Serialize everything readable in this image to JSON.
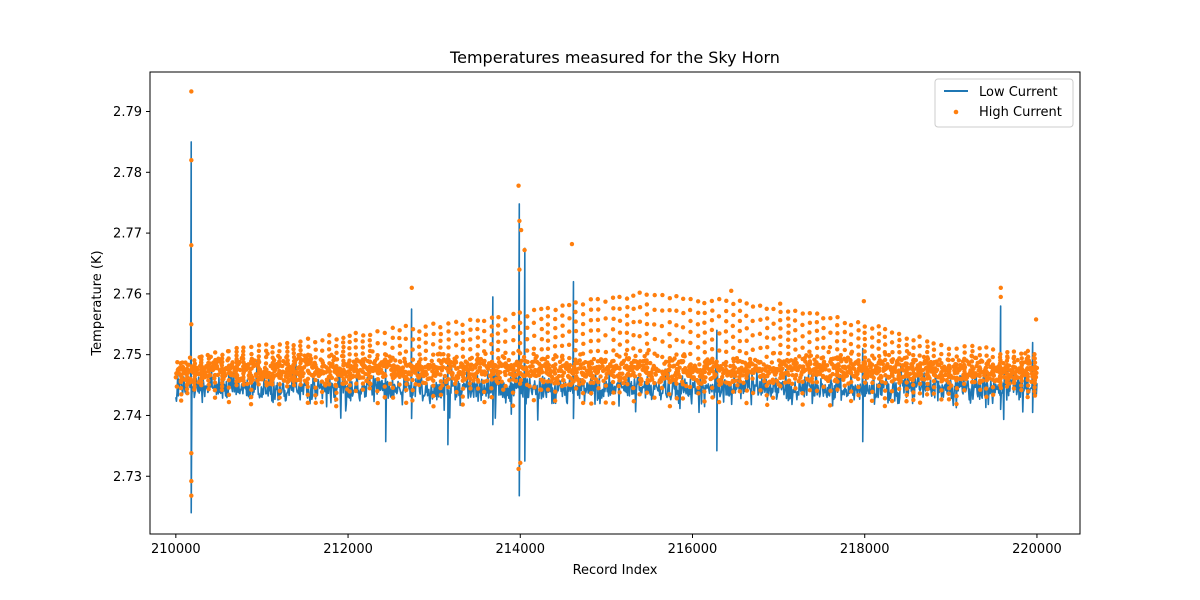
{
  "chart_data": {
    "type": "line",
    "title": "Temperatures measured for the Sky Horn",
    "xlabel": "Record Index",
    "ylabel": "Temperature (K)",
    "xlim": [
      209700,
      220500
    ],
    "ylim": [
      2.7205,
      2.7965
    ],
    "xticks": [
      210000,
      212000,
      214000,
      216000,
      218000,
      220000
    ],
    "yticks": [
      2.73,
      2.74,
      2.75,
      2.76,
      2.77,
      2.78,
      2.79
    ],
    "x_range": [
      210000,
      220000
    ],
    "legend_position": "top-right",
    "series": [
      {
        "name": "Low Current",
        "kind": "line",
        "color": "#1f77b4",
        "baseline": 2.7445,
        "noise_band": [
          2.7405,
          2.7475
        ],
        "spikes": [
          {
            "x": 210180,
            "top": 2.785,
            "bottom": 2.724
          },
          {
            "x": 213990,
            "top": 2.7748,
            "bottom": 2.7268
          },
          {
            "x": 214050,
            "top": 2.7675,
            "bottom": 2.7325
          },
          {
            "x": 212740,
            "top": 2.7575,
            "bottom": 2.7395
          },
          {
            "x": 213680,
            "top": 2.7595,
            "bottom": 2.7385
          },
          {
            "x": 214620,
            "top": 2.762,
            "bottom": 2.7395
          },
          {
            "x": 219580,
            "top": 2.758,
            "bottom": 2.741
          },
          {
            "x": 216280,
            "top": 2.754,
            "bottom": 2.7342
          },
          {
            "x": 217980,
            "top": 2.751,
            "bottom": 2.7357
          },
          {
            "x": 213160,
            "top": 2.749,
            "bottom": 2.7352
          },
          {
            "x": 212440,
            "top": 2.7485,
            "bottom": 2.7357
          },
          {
            "x": 219950,
            "top": 2.752,
            "bottom": 2.7405
          }
        ]
      },
      {
        "name": "High Current",
        "kind": "scatter",
        "color": "#ff7f0e",
        "baseline": 2.7475,
        "noise_band": [
          2.7435,
          2.7505
        ],
        "envelope_top": [
          {
            "x": 210000,
            "y": 2.749
          },
          {
            "x": 210600,
            "y": 2.751
          },
          {
            "x": 211500,
            "y": 2.753
          },
          {
            "x": 212500,
            "y": 2.7545
          },
          {
            "x": 213500,
            "y": 2.756
          },
          {
            "x": 214500,
            "y": 2.7585
          },
          {
            "x": 215400,
            "y": 2.7605
          },
          {
            "x": 216200,
            "y": 2.7595
          },
          {
            "x": 217000,
            "y": 2.7585
          },
          {
            "x": 218000,
            "y": 2.7555
          },
          {
            "x": 219000,
            "y": 2.752
          },
          {
            "x": 220000,
            "y": 2.7505
          }
        ],
        "outliers": [
          {
            "x": 210180,
            "y": 2.7933
          },
          {
            "x": 210180,
            "y": 2.782
          },
          {
            "x": 210180,
            "y": 2.768
          },
          {
            "x": 210180,
            "y": 2.755
          },
          {
            "x": 210180,
            "y": 2.7338
          },
          {
            "x": 210180,
            "y": 2.7292
          },
          {
            "x": 210180,
            "y": 2.7268
          },
          {
            "x": 213980,
            "y": 2.7778
          },
          {
            "x": 213990,
            "y": 2.772
          },
          {
            "x": 214010,
            "y": 2.7705
          },
          {
            "x": 213990,
            "y": 2.764
          },
          {
            "x": 213980,
            "y": 2.7312
          },
          {
            "x": 214000,
            "y": 2.7322
          },
          {
            "x": 214600,
            "y": 2.7682
          },
          {
            "x": 212740,
            "y": 2.761
          },
          {
            "x": 217990,
            "y": 2.7588
          },
          {
            "x": 219580,
            "y": 2.761
          },
          {
            "x": 219580,
            "y": 2.7595
          },
          {
            "x": 214050,
            "y": 2.7672
          },
          {
            "x": 219990,
            "y": 2.7558
          },
          {
            "x": 216450,
            "y": 2.7605
          }
        ]
      }
    ]
  }
}
